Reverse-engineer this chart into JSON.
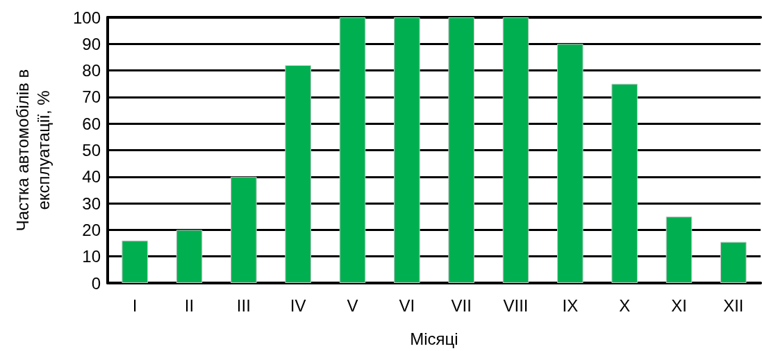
{
  "chart_data": {
    "type": "bar",
    "xlabel": "Місяці",
    "ylabel": "Частка автомобілів в експлуатації, %",
    "categories": [
      "I",
      "II",
      "III",
      "IV",
      "V",
      "VI",
      "VII",
      "VIII",
      "IX",
      "X",
      "XI",
      "XII"
    ],
    "values": [
      16,
      20,
      40,
      82,
      100,
      100,
      100,
      100,
      90,
      75,
      25,
      15.5
    ],
    "color": "#00b050",
    "ylim": [
      0,
      100
    ],
    "yticks": [
      0,
      10,
      20,
      30,
      40,
      50,
      60,
      70,
      80,
      90,
      100
    ],
    "grid": "y"
  }
}
